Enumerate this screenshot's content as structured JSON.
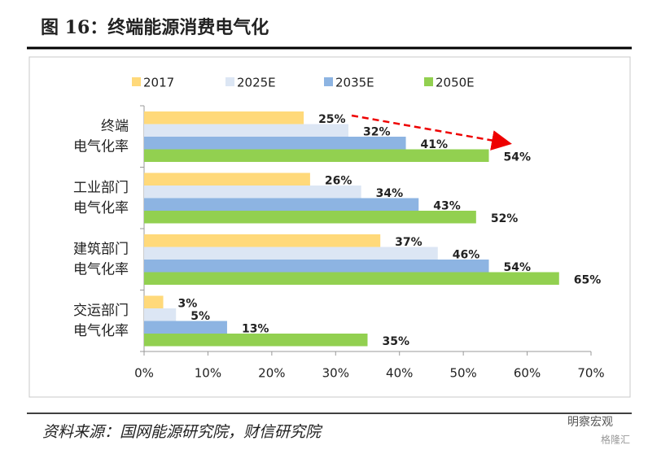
{
  "header": {
    "title": "图 16：终端能源消费电气化"
  },
  "chart_data": {
    "type": "hbar",
    "categories": [
      [
        "终端",
        "电气化率"
      ],
      [
        "工业部门",
        "电气化率"
      ],
      [
        "建筑部门",
        "电气化率"
      ],
      [
        "交运部门",
        "电气化率"
      ]
    ],
    "series": [
      {
        "name": "2017",
        "color": "#ffd97a",
        "values": [
          25,
          26,
          37,
          3
        ],
        "value_labels": [
          "25%",
          "26%",
          "37%",
          "3%"
        ]
      },
      {
        "name": "2025E",
        "color": "#dce6f4",
        "values": [
          32,
          34,
          46,
          5
        ],
        "value_labels": [
          "32%",
          "34%",
          "46%",
          "5%"
        ]
      },
      {
        "name": "2035E",
        "color": "#8db4e2",
        "values": [
          41,
          43,
          54,
          13
        ],
        "value_labels": [
          "41%",
          "43%",
          "54%",
          "13%"
        ]
      },
      {
        "name": "2050E",
        "color": "#92d050",
        "values": [
          54,
          52,
          65,
          35
        ],
        "value_labels": [
          "54%",
          "52%",
          "65%",
          "35%"
        ]
      }
    ],
    "xlim": [
      0,
      70
    ],
    "xticks": [
      {
        "value": 0,
        "label": "0%"
      },
      {
        "value": 10,
        "label": "10%"
      },
      {
        "value": 20,
        "label": "20%"
      },
      {
        "value": 30,
        "label": "30%"
      },
      {
        "value": 40,
        "label": "40%"
      },
      {
        "value": 50,
        "label": "50%"
      },
      {
        "value": 60,
        "label": "60%"
      },
      {
        "value": 70,
        "label": "70%"
      }
    ],
    "legend": "top"
  },
  "footer": {
    "source": "资料来源：国网能源研究院，财信研究院",
    "watermark": "明察宏观",
    "logo": "格隆汇"
  }
}
